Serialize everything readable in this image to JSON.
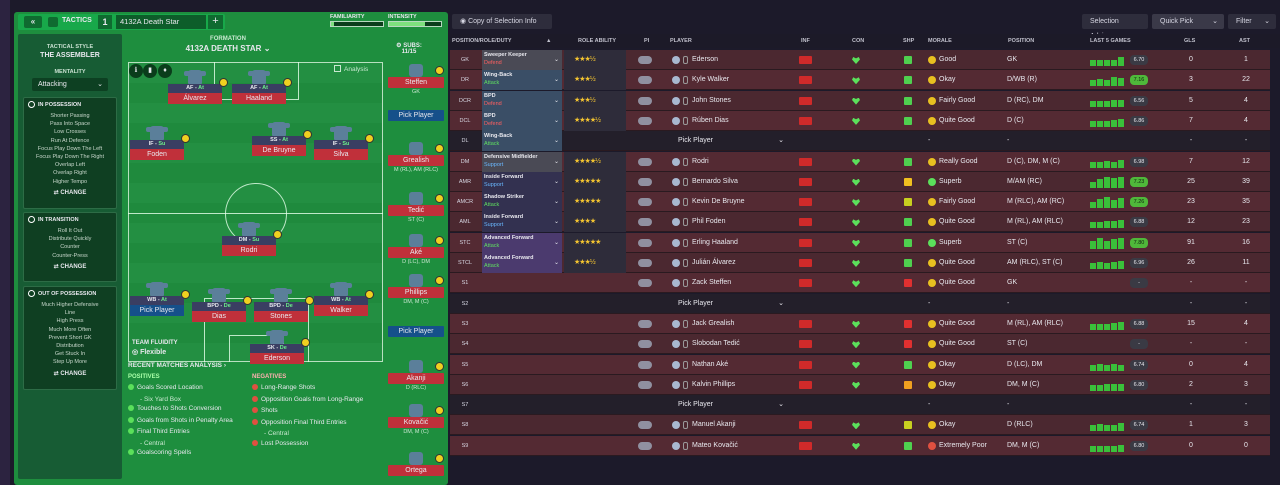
{
  "header": {
    "title": "TACTICS",
    "number": "1",
    "tactic_name": "4132A Death Star",
    "add": "+",
    "back": "«",
    "familiarity_label": "FAMILIARITY",
    "intensity_label": "INTENSITY",
    "familiarity": 0.05,
    "intensity": 0.7
  },
  "sidebar": {
    "style_label": "TACTICAL STYLE",
    "style_name": "THE ASSEMBLER",
    "mentality_label": "MENTALITY",
    "mentality": "Attacking",
    "in_possession": {
      "title": "IN POSSESSION",
      "items": [
        "Shorter Passing",
        "Pass Into Space",
        "Low Crosses",
        "Run At Defence",
        "Focus Play Down The Left",
        "Focus Play Down The Right",
        "Overlap Left",
        "Overlap Right",
        "Higher Tempo"
      ],
      "change": "CHANGE"
    },
    "in_transition": {
      "title": "IN TRANSITION",
      "items": [
        "Roll It Out",
        "Distribute Quickly",
        "Counter",
        "Counter-Press"
      ],
      "change": "CHANGE"
    },
    "out_possession": {
      "title": "OUT OF POSSESSION",
      "items": [
        "Much Higher Defensive",
        "Line",
        "High Press",
        "Much More Often",
        "Prevent Short GK",
        "Distribution",
        "Get Stuck In",
        "Step Up More"
      ],
      "change": "CHANGE"
    }
  },
  "formation": {
    "label": "FORMATION",
    "name": "4132A DEATH STAR",
    "subs_label": "SUBS:",
    "subs_count": "11/15",
    "analysis": "Analysis"
  },
  "pitch": {
    "players": [
      {
        "role": "AF - ",
        "duty": "At",
        "name": "Álvarez"
      },
      {
        "role": "AF - ",
        "duty": "At",
        "name": "Haaland"
      },
      {
        "role": "IF - ",
        "duty": "Su",
        "name": "Foden"
      },
      {
        "role": "SS - ",
        "duty": "At",
        "name": "De Bruyne"
      },
      {
        "role": "IF - ",
        "duty": "Su",
        "name": "Silva"
      },
      {
        "role": "DM - ",
        "duty": "Su",
        "name": "Rodri"
      },
      {
        "role": "WB - ",
        "duty": "At",
        "name": "Pick Player"
      },
      {
        "role": "BPD - ",
        "duty": "De",
        "name": "Dias"
      },
      {
        "role": "BPD - ",
        "duty": "De",
        "name": "Stones"
      },
      {
        "role": "WB - ",
        "duty": "At",
        "name": "Walker"
      },
      {
        "role": "SK - ",
        "duty": "De",
        "name": "Ederson"
      }
    ],
    "fluidity_label": "TEAM FLUIDITY",
    "fluidity": "Flexible"
  },
  "subs": [
    {
      "name": "Steffen",
      "pos": "GK"
    },
    {
      "name": "Pick Player",
      "pos": ""
    },
    {
      "name": "Grealish",
      "pos": "M (RL), AM (RLC)"
    },
    {
      "name": "Tedić",
      "pos": "ST (C)"
    },
    {
      "name": "Aké",
      "pos": "D (LC), DM"
    },
    {
      "name": "Phillips",
      "pos": "DM, M (C)"
    },
    {
      "name": "Pick Player",
      "pos": ""
    },
    {
      "name": "Akanji",
      "pos": "D (RLC)"
    },
    {
      "name": "Kovačić",
      "pos": "DM, M (C)"
    },
    {
      "name": "Ortega",
      "pos": ""
    }
  ],
  "analysis": {
    "title": "RECENT MATCHES ANALYSIS",
    "positives_label": "POSITIVES",
    "positives": [
      {
        "t": "Goals Scored Location",
        "s": ""
      },
      {
        "t": "",
        "s": "- Six Yard Box"
      },
      {
        "t": "Touches to Shots Conversion",
        "s": ""
      },
      {
        "t": "Goals from Shots in Penalty Area",
        "s": ""
      },
      {
        "t": "Final Third Entries",
        "s": ""
      },
      {
        "t": "",
        "s": "- Central"
      },
      {
        "t": "Goalscoring Spells",
        "s": ""
      }
    ],
    "negatives_label": "NEGATIVES",
    "negatives": [
      {
        "t": "Long-Range Shots",
        "s": ""
      },
      {
        "t": "Opposition Goals from Long-Range",
        "s": ""
      },
      {
        "t": "Shots",
        "s": ""
      },
      {
        "t": "Opposition Final Third Entries",
        "s": ""
      },
      {
        "t": "",
        "s": "- Central"
      },
      {
        "t": "Lost Possession",
        "s": ""
      }
    ]
  },
  "toolbar": {
    "copy": "Copy of Selection Info",
    "advice": "Selection Advice",
    "quick_pick": "Quick Pick",
    "filter": "Filter"
  },
  "table": {
    "columns": {
      "pos": "POSITION/ROLE/DUTY",
      "ra": "ROLE ABILITY",
      "pi": "PI",
      "player": "PLAYER",
      "inf": "INF",
      "con": "CON",
      "shp": "SHP",
      "morale": "MORALE",
      "position": "POSITION",
      "last5": "LAST 5 GAMES",
      "gls": "GLS",
      "ast": "AST"
    },
    "rows": [
      {
        "pos": "GK",
        "r1": "Sweeper Keeper",
        "r2": "Defend",
        "stars": "★★★½",
        "player": "Ederson",
        "morale": "Good",
        "position": "GK",
        "avg": "6.70",
        "gls": "0",
        "ast": "1",
        "mc": "#e8c020",
        "rc": "grey"
      },
      {
        "pos": "DR",
        "r1": "Wing-Back",
        "r2": "Attack",
        "stars": "★★★½",
        "player": "Kyle Walker",
        "morale": "Okay",
        "position": "D/WB (R)",
        "avg": "7.16",
        "gls": "3",
        "ast": "22",
        "mc": "#e8c020",
        "rc": "slate"
      },
      {
        "pos": "DCR",
        "r1": "BPD",
        "r2": "Defend",
        "stars": "★★★½",
        "player": "John Stones",
        "morale": "Fairly Good",
        "position": "D (RC), DM",
        "avg": "6.56",
        "gls": "5",
        "ast": "4",
        "mc": "#e8c020",
        "rc": "slate"
      },
      {
        "pos": "DCL",
        "r1": "BPD",
        "r2": "Defend",
        "stars": "★★★★½",
        "player": "Rúben Dias",
        "morale": "Quite Good",
        "position": "D (C)",
        "avg": "6.86",
        "gls": "7",
        "ast": "4",
        "mc": "#e8c020",
        "rc": "slate"
      },
      {
        "pos": "DL",
        "r1": "Wing-Back",
        "r2": "Attack",
        "stars": "",
        "player": "Pick Player",
        "morale": "-",
        "position": "-",
        "avg": "",
        "gls": "-",
        "ast": "-",
        "mc": "",
        "rc": "slate",
        "empty": true
      },
      {
        "pos": "DM",
        "r1": "Defensive Midfielder",
        "r2": "Support",
        "stars": "★★★★½",
        "player": "Rodri",
        "morale": "Really Good",
        "position": "D (C), DM, M (C)",
        "avg": "6.98",
        "gls": "7",
        "ast": "12",
        "mc": "#e8c020",
        "rc": "grey"
      },
      {
        "pos": "AMR",
        "r1": "Inside Forward",
        "r2": "Support",
        "stars": "★★★★★",
        "player": "Bernardo Silva",
        "morale": "Superb",
        "position": "M/AM (RC)",
        "avg": "7.23",
        "gls": "25",
        "ast": "39",
        "mc": "#5be05b",
        "rc": ""
      },
      {
        "pos": "AMCR",
        "r1": "Shadow Striker",
        "r2": "Attack",
        "stars": "★★★★★",
        "player": "Kevin De Bruyne",
        "morale": "Fairly Good",
        "position": "M (RLC), AM (RC)",
        "avg": "7.26",
        "gls": "23",
        "ast": "35",
        "mc": "#e8c020",
        "rc": ""
      },
      {
        "pos": "AML",
        "r1": "Inside Forward",
        "r2": "Support",
        "stars": "★★★★",
        "player": "Phil Foden",
        "morale": "Quite Good",
        "position": "M (RL), AM (RLC)",
        "avg": "6.88",
        "gls": "12",
        "ast": "23",
        "mc": "#e8c020",
        "rc": ""
      },
      {
        "pos": "STC",
        "r1": "Advanced Forward",
        "r2": "Attack",
        "stars": "★★★★★",
        "player": "Erling Haaland",
        "morale": "Superb",
        "position": "ST (C)",
        "avg": "7.80",
        "gls": "91",
        "ast": "16",
        "mc": "#5be05b",
        "rc": "pur"
      },
      {
        "pos": "STCL",
        "r1": "Advanced Forward",
        "r2": "Attack",
        "stars": "★★★½",
        "player": "Julián Álvarez",
        "morale": "Quite Good",
        "position": "AM (RLC), ST (C)",
        "avg": "6.96",
        "gls": "26",
        "ast": "11",
        "mc": "#e8c020",
        "rc": "pur"
      },
      {
        "pos": "S1",
        "player": "Zack Steffen",
        "morale": "Quite Good",
        "position": "GK",
        "avg": "-",
        "gls": "-",
        "ast": "-",
        "mc": "#e8c020",
        "sub": true
      },
      {
        "pos": "S2",
        "player": "Pick Player",
        "morale": "-",
        "position": "-",
        "avg": "",
        "gls": "-",
        "ast": "-",
        "sub": true,
        "empty": true
      },
      {
        "pos": "S3",
        "player": "Jack Grealish",
        "morale": "Quite Good",
        "position": "M (RL), AM (RLC)",
        "avg": "6.88",
        "gls": "15",
        "ast": "4",
        "mc": "#e8c020",
        "sub": true
      },
      {
        "pos": "S4",
        "player": "Slobodan Tedić",
        "morale": "Quite Good",
        "position": "ST (C)",
        "avg": "-",
        "gls": "-",
        "ast": "-",
        "mc": "#e8c020",
        "sub": true
      },
      {
        "pos": "S5",
        "player": "Nathan Aké",
        "morale": "Okay",
        "position": "D (LC), DM",
        "avg": "6.74",
        "gls": "0",
        "ast": "4",
        "mc": "#e8c020",
        "sub": true
      },
      {
        "pos": "S6",
        "player": "Kalvin Phillips",
        "morale": "Okay",
        "position": "DM, M (C)",
        "avg": "6.80",
        "gls": "2",
        "ast": "3",
        "mc": "#e8c020",
        "sub": true
      },
      {
        "pos": "S7",
        "player": "Pick Player",
        "morale": "-",
        "position": "-",
        "avg": "",
        "gls": "-",
        "ast": "-",
        "sub": true,
        "empty": true
      },
      {
        "pos": "S8",
        "player": "Manuel Akanji",
        "morale": "Okay",
        "position": "D (RLC)",
        "avg": "6.74",
        "gls": "1",
        "ast": "3",
        "mc": "#e8c020",
        "sub": true
      },
      {
        "pos": "S9",
        "player": "Mateo Kovačić",
        "morale": "Extremely Poor",
        "position": "DM, M (C)",
        "avg": "6.80",
        "gls": "0",
        "ast": "0",
        "mc": "#e05040",
        "sub": true
      }
    ]
  }
}
